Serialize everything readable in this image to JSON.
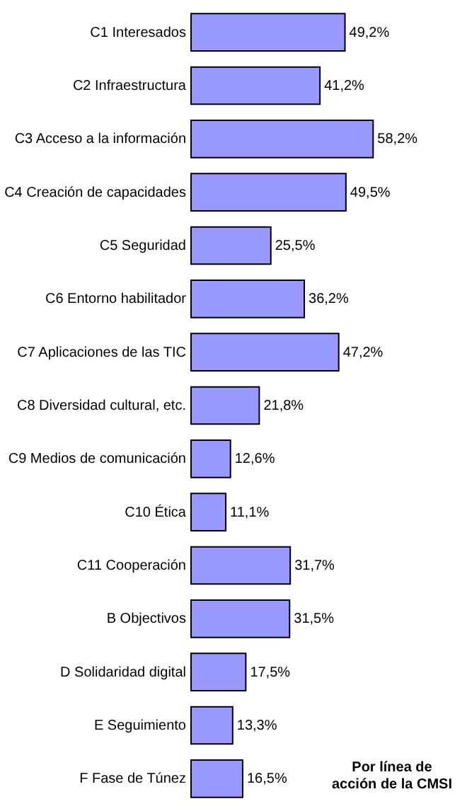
{
  "chart_data": {
    "type": "bar",
    "orientation": "horizontal",
    "categories": [
      "C1 Interesados",
      "C2 Infraestructura",
      "C3 Acceso a la información",
      "C4 Creación de capacidades",
      "C5 Seguridad",
      "C6 Entorno habilitador",
      "C7 Aplicaciones de las TIC",
      "C8 Diversidad cultural, etc.",
      "C9 Medios de comunicación",
      "C10 Ética",
      "C11 Cooperación",
      "B Objectivos",
      "D Solidaridad digital",
      "E Seguimiento",
      "F Fase de Túnez"
    ],
    "values": [
      49.2,
      41.2,
      58.2,
      49.5,
      25.5,
      36.2,
      47.2,
      21.8,
      12.6,
      11.1,
      31.7,
      31.5,
      17.5,
      13.3,
      16.5
    ],
    "value_labels": [
      "49,2%",
      "41,2%",
      "58,2%",
      "49,5%",
      "25,5%",
      "36,2%",
      "47,2%",
      "21,8%",
      "12,6%",
      "11,1%",
      "31,7%",
      "31,5%",
      "17,5%",
      "13,3%",
      "16,5%"
    ],
    "color": "#9999ff",
    "annotations": [
      "Por línea de acción de la CMSI"
    ]
  }
}
